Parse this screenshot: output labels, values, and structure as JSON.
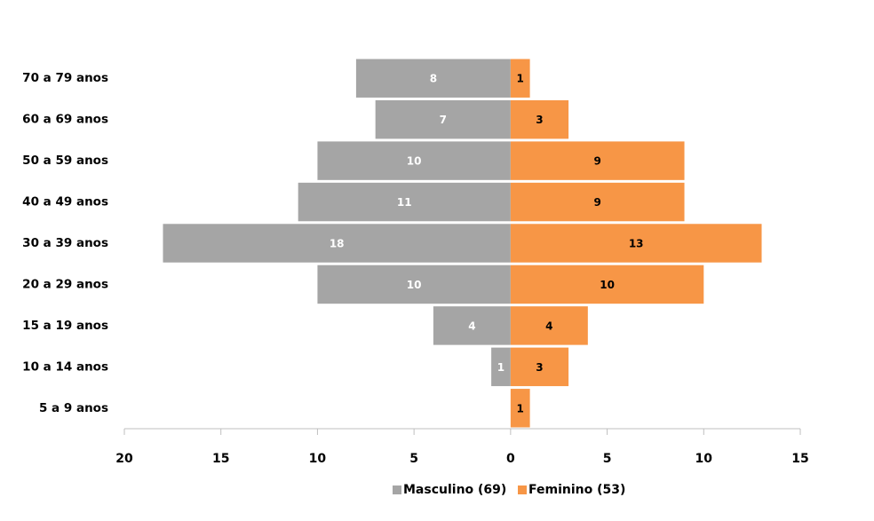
{
  "chart_data": {
    "type": "pyramid",
    "categories": [
      "70 a 79 anos",
      "60 a 69 anos",
      "50 a 59 anos",
      "40 a 49 anos",
      "30 a 39 anos",
      "20 a 29 anos",
      "15 a 19 anos",
      "10 a 14 anos",
      "5 a 9 anos"
    ],
    "series": [
      {
        "name": "Masculino (69)",
        "color": "#a5a5a5",
        "label_color": "#ffffff",
        "values": [
          -8,
          -7,
          -10,
          -11,
          -18,
          -10,
          -4,
          -1,
          null
        ],
        "value_labels": [
          "8",
          "7",
          "10",
          "11",
          "18",
          "10",
          "4",
          "1",
          null
        ]
      },
      {
        "name": "Feminino (53)",
        "color": "#f79646",
        "label_color": "#000000",
        "values": [
          1,
          3,
          9,
          9,
          13,
          10,
          4,
          3,
          1
        ]
      }
    ],
    "xlim": [
      -20,
      15
    ],
    "xticks": [
      {
        "value": -20,
        "label": "20"
      },
      {
        "value": -15,
        "label": "15"
      },
      {
        "value": -10,
        "label": "10"
      },
      {
        "value": -5,
        "label": "5"
      },
      0,
      5,
      10,
      15
    ],
    "legend": "bottom"
  }
}
